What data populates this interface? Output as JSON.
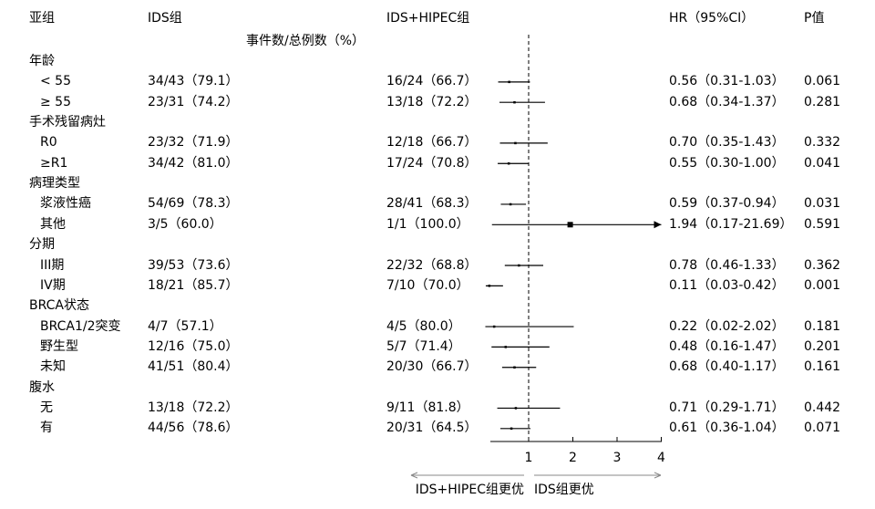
{
  "headers": {
    "subgroup": "亚组",
    "ids": "IDS组",
    "ids_hipec": "IDS+HIPEC组",
    "hr": "HR（95%CI）",
    "p": "P值",
    "events": "事件数/总例数（%）"
  },
  "rows": [
    {
      "label": "年龄",
      "type": "group"
    },
    {
      "label": "< 55",
      "type": "item",
      "ids": "34/43（79.1）",
      "ids_hipec": "16/24（66.7）",
      "hr_text": "0.56（0.31-1.03）",
      "p": "0.061"
    },
    {
      "label": "≥ 55",
      "type": "item",
      "ids": "23/31（74.2）",
      "ids_hipec": "13/18（72.2）",
      "hr_text": "0.68（0.34-1.37）",
      "p": "0.281"
    },
    {
      "label": "手术残留病灶",
      "type": "group"
    },
    {
      "label": "R0",
      "type": "item",
      "ids": "23/32（71.9）",
      "ids_hipec": "12/18（66.7）",
      "hr_text": "0.70（0.35-1.43）",
      "p": "0.332"
    },
    {
      "label": "≥R1",
      "type": "item",
      "ids": "34/42（81.0）",
      "ids_hipec": "17/24（70.8）",
      "hr_text": "0.55（0.30-1.00）",
      "p": "0.041"
    },
    {
      "label": "病理类型",
      "type": "group"
    },
    {
      "label": "浆液性癌",
      "type": "item",
      "ids": "54/69（78.3）",
      "ids_hipec": "28/41（68.3）",
      "hr_text": "0.59（0.37-0.94）",
      "p": "0.031"
    },
    {
      "label": "其他",
      "type": "item",
      "ids": "3/5（60.0）",
      "ids_hipec": "1/1（100.0）",
      "hr_text": "1.94（0.17-21.69）",
      "p": "0.591"
    },
    {
      "label": "分期",
      "type": "group"
    },
    {
      "label": "III期",
      "type": "item",
      "ids": "39/53（73.6）",
      "ids_hipec": "22/32（68.8）",
      "hr_text": "0.78（0.46-1.33）",
      "p": "0.362"
    },
    {
      "label": "IV期",
      "type": "item",
      "ids": "18/21（85.7）",
      "ids_hipec": "7/10（70.0）",
      "hr_text": "0.11（0.03-0.42）",
      "p": "0.001"
    },
    {
      "label": "BRCA状态",
      "type": "group"
    },
    {
      "label": "BRCA1/2突变",
      "type": "item",
      "ids": "4/7（57.1）",
      "ids_hipec": "4/5（80.0）",
      "hr_text": "0.22（0.02-2.02）",
      "p": "0.181"
    },
    {
      "label": "野生型",
      "type": "item",
      "ids": "12/16（75.0）",
      "ids_hipec": "5/7（71.4）",
      "hr_text": "0.48（0.16-1.47）",
      "p": "0.201"
    },
    {
      "label": "未知",
      "type": "item",
      "ids": "41/51（80.4）",
      "ids_hipec": "20/30（66.7）",
      "hr_text": "0.68（0.40-1.17）",
      "p": "0.161"
    },
    {
      "label": "腹水",
      "type": "group"
    },
    {
      "label": "无",
      "type": "item",
      "ids": "13/18（72.2）",
      "ids_hipec": "9/11（81.8）",
      "hr_text": "0.71（0.29-1.71）",
      "p": "0.442"
    },
    {
      "label": "有",
      "type": "item",
      "ids": "44/56（78.6）",
      "ids_hipec": "20/31（64.5）",
      "hr_text": "0.61（0.36-1.04）",
      "p": "0.071"
    }
  ],
  "chart_data": {
    "type": "forest",
    "xlim": [
      0,
      4
    ],
    "xticks": [
      1,
      2,
      3,
      4
    ],
    "reference_line": 1,
    "left_label": "IDS+HIPEC组更优",
    "right_label": "IDS组更优",
    "points": [
      {
        "hr": 0.56,
        "lo": 0.31,
        "hi": 1.03
      },
      {
        "hr": 0.68,
        "lo": 0.34,
        "hi": 1.37
      },
      {
        "hr": 0.7,
        "lo": 0.35,
        "hi": 1.43
      },
      {
        "hr": 0.55,
        "lo": 0.3,
        "hi": 1.0
      },
      {
        "hr": 0.59,
        "lo": 0.37,
        "hi": 0.94
      },
      {
        "hr": 1.94,
        "lo": 0.17,
        "hi": 21.69
      },
      {
        "hr": 0.78,
        "lo": 0.46,
        "hi": 1.33
      },
      {
        "hr": 0.11,
        "lo": 0.03,
        "hi": 0.42
      },
      {
        "hr": 0.22,
        "lo": 0.02,
        "hi": 2.02
      },
      {
        "hr": 0.48,
        "lo": 0.16,
        "hi": 1.47
      },
      {
        "hr": 0.68,
        "lo": 0.4,
        "hi": 1.17
      },
      {
        "hr": 0.71,
        "lo": 0.29,
        "hi": 1.71
      },
      {
        "hr": 0.61,
        "lo": 0.36,
        "hi": 1.04
      }
    ]
  }
}
